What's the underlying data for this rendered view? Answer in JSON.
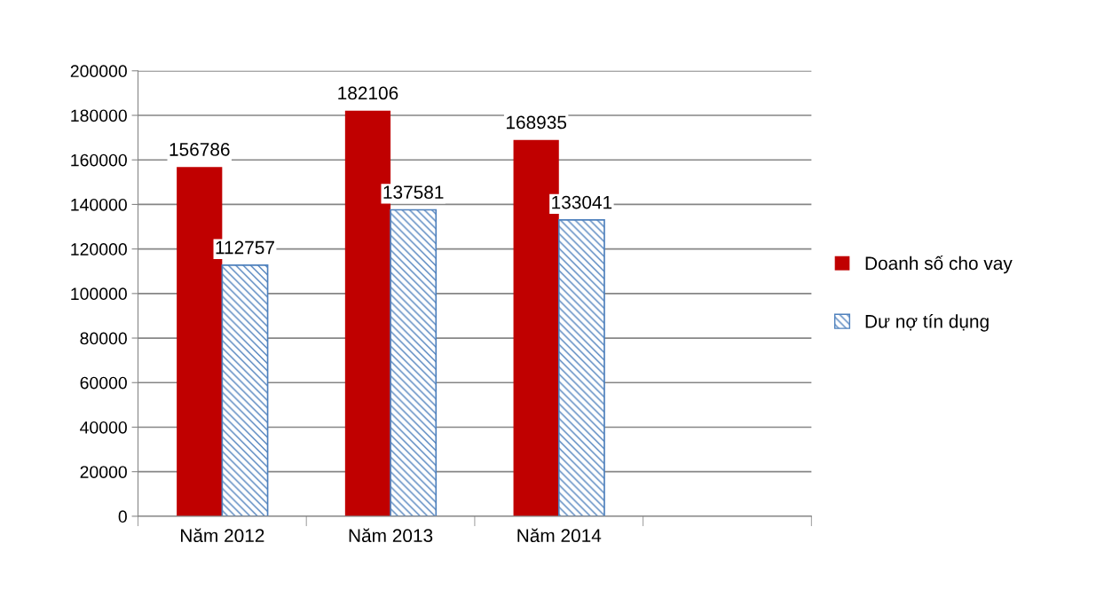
{
  "chart_data": {
    "type": "bar",
    "categories": [
      "Năm 2012",
      "Năm 2013",
      "Năm 2014",
      null
    ],
    "series": [
      {
        "name": "Doanh số cho vay",
        "color": "#c00000",
        "values": [
          156786,
          182106,
          168935,
          null
        ]
      },
      {
        "name": "Dư nợ tín dụng",
        "color": "#4f81bd",
        "values": [
          112757,
          137581,
          133041,
          null
        ]
      }
    ],
    "ylim": [
      0,
      200000
    ],
    "yticks": [
      0,
      20000,
      40000,
      60000,
      80000,
      100000,
      120000,
      140000,
      160000,
      180000,
      200000
    ],
    "grid": "y",
    "legend": "right",
    "data_labels": true
  }
}
